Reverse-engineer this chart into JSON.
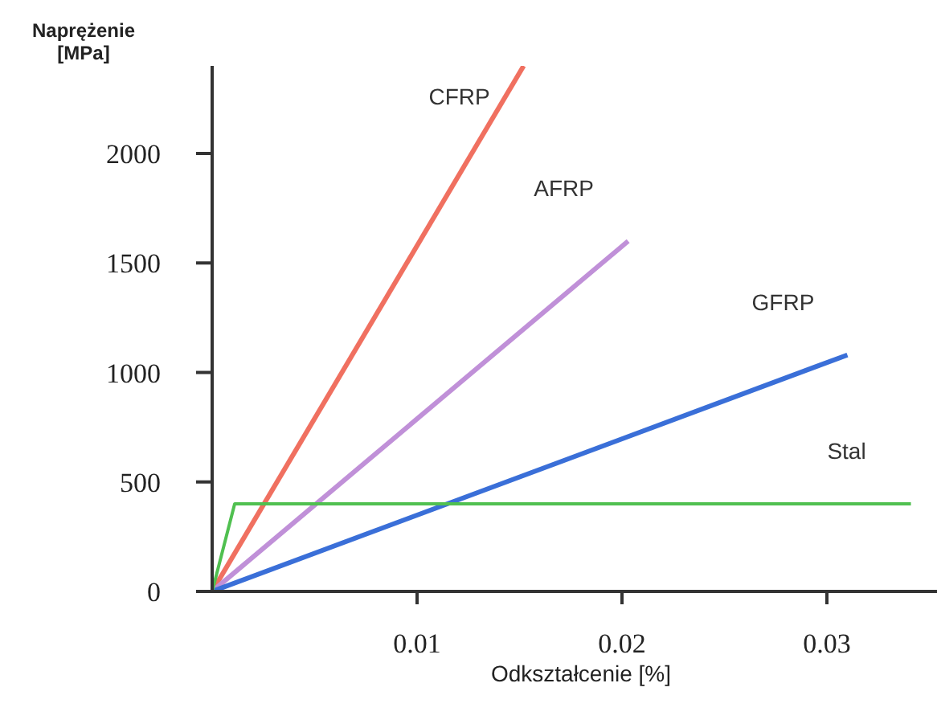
{
  "chart_data": {
    "type": "line",
    "xlabel": "Odkształcenie [%]",
    "ylabel": "Naprężenie [MPa]",
    "xlim": [
      0,
      0.036
    ],
    "xticks": [
      0.01,
      0.02,
      0.03
    ],
    "ylim": [
      0,
      2400
    ],
    "yticks": [
      0,
      500,
      1000,
      1500,
      2000
    ],
    "grid": false,
    "legend": false,
    "marker": "none",
    "line_style": "solid",
    "series": [
      {
        "name": "CFRP",
        "color": "#f07060",
        "x": [
          0,
          0.0152
        ],
        "values": [
          0,
          2400
        ]
      },
      {
        "name": "AFRP",
        "color": "#c090d8",
        "x": [
          0,
          0.0203
        ],
        "values": [
          0,
          1600
        ]
      },
      {
        "name": "GFRP",
        "color": "#3a6fd8",
        "x": [
          0,
          0.031
        ],
        "values": [
          0,
          1080
        ]
      },
      {
        "name": "Stal",
        "color": "#50c050",
        "x": [
          0,
          0.0011,
          0.0341
        ],
        "values": [
          0,
          400,
          400
        ]
      }
    ]
  }
}
